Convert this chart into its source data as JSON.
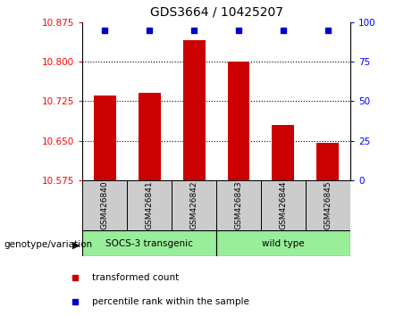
{
  "title": "GDS3664 / 10425207",
  "categories": [
    "GSM426840",
    "GSM426841",
    "GSM426842",
    "GSM426843",
    "GSM426844",
    "GSM426845"
  ],
  "bar_values": [
    10.735,
    10.74,
    10.84,
    10.8,
    10.68,
    10.645
  ],
  "percentile_values": [
    99,
    99,
    99.5,
    99.5,
    99,
    99
  ],
  "ymin": 10.575,
  "ymax": 10.875,
  "y2min": 0,
  "y2max": 100,
  "yticks": [
    10.575,
    10.65,
    10.725,
    10.8,
    10.875
  ],
  "y2ticks": [
    0,
    25,
    50,
    75,
    100
  ],
  "bar_color": "#cc0000",
  "dot_color": "#0000cc",
  "group1_label": "SOCS-3 transgenic",
  "group2_label": "wild type",
  "group1_indices": [
    0,
    1,
    2
  ],
  "group2_indices": [
    3,
    4,
    5
  ],
  "group_bg_color": "#99ee99",
  "tick_label_bg": "#cccccc",
  "legend_red_label": "transformed count",
  "legend_blue_label": "percentile rank within the sample",
  "genotype_label": "genotype/variation"
}
